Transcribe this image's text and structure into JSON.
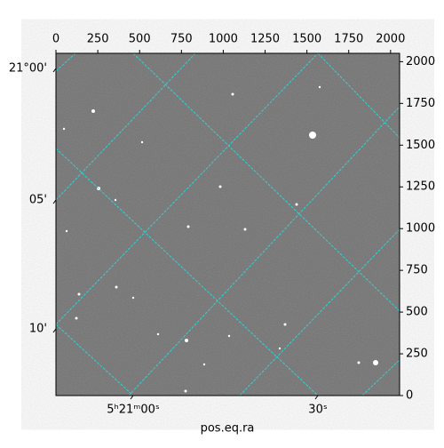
{
  "chart_data": {
    "type": "image",
    "xlabel": "pos.eq.ra",
    "xlim": [
      0,
      2054
    ],
    "xticks": [
      0,
      250,
      500,
      750,
      1000,
      1250,
      1500,
      1750,
      2000
    ],
    "ylim": [
      0,
      2050
    ],
    "yticks": [
      0,
      250,
      500,
      750,
      1000,
      1250,
      1500,
      1750,
      2000
    ],
    "dec_ticks": [
      "21°00'",
      "05'",
      "10'"
    ],
    "ra_ticks": [
      "5ʰ21ᵐ00ˢ",
      "30ˢ"
    ],
    "grid": true
  }
}
